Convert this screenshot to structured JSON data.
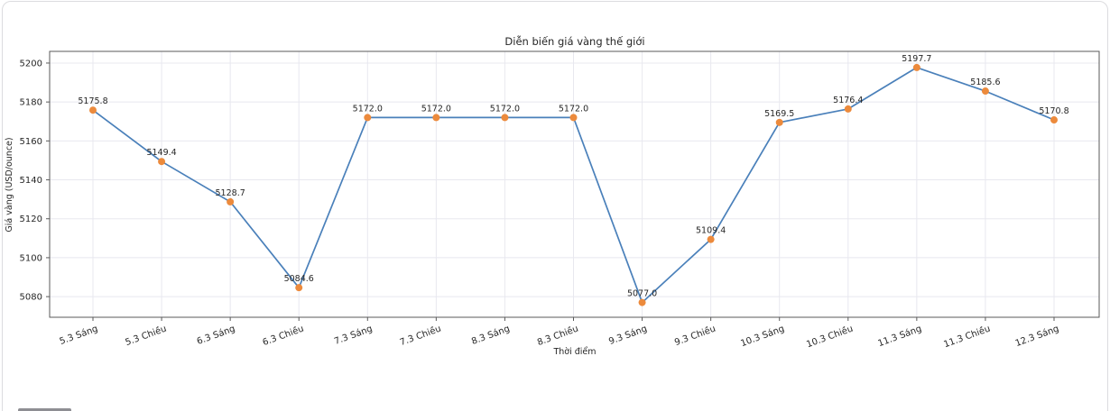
{
  "page": {
    "background": "#ffffff",
    "frame_border_color": "#dcdcdf"
  },
  "chart_data": {
    "type": "line",
    "title": "Diễn biến giá vàng thế giới",
    "xlabel": "Thời điểm",
    "ylabel": "Giá vàng (USD/ounce)",
    "categories": [
      "5.3 Sáng",
      "5.3 Chiều",
      "6.3 Sáng",
      "6.3 Chiều",
      "7.3 Sáng",
      "7.3 Chiều",
      "8.3 Sáng",
      "8.3 Chiều",
      "9.3 Sáng",
      "9.3 Chiều",
      "10.3 Sáng",
      "10.3 Chiều",
      "11.3 Sáng",
      "11.3 Chiều",
      "12.3 Sáng"
    ],
    "values": [
      5175.8,
      5149.4,
      5128.7,
      5084.6,
      5172.0,
      5172.0,
      5172.0,
      5172.0,
      5077.0,
      5109.4,
      5169.5,
      5176.4,
      5197.7,
      5185.6,
      5170.8
    ],
    "point_labels": [
      "5175.8",
      "5149.4",
      "5128.7",
      "5084.6",
      "5172.0",
      "5172.0",
      "5172.0",
      "5172.0",
      "5077.0",
      "5109.4",
      "5169.5",
      "5176.4",
      "5197.7",
      "5185.6",
      "5170.8"
    ],
    "yticks": [
      5080,
      5100,
      5120,
      5140,
      5160,
      5180,
      5200
    ],
    "ylim": [
      5069.4,
      5206.0
    ],
    "grid": true,
    "xtick_rotation": -20,
    "line_color": "#4a80ba",
    "marker_color": "#ec8a3c",
    "grid_color": "#e8e8ef",
    "spine_color": "#5a5a5a",
    "legend": "none"
  }
}
